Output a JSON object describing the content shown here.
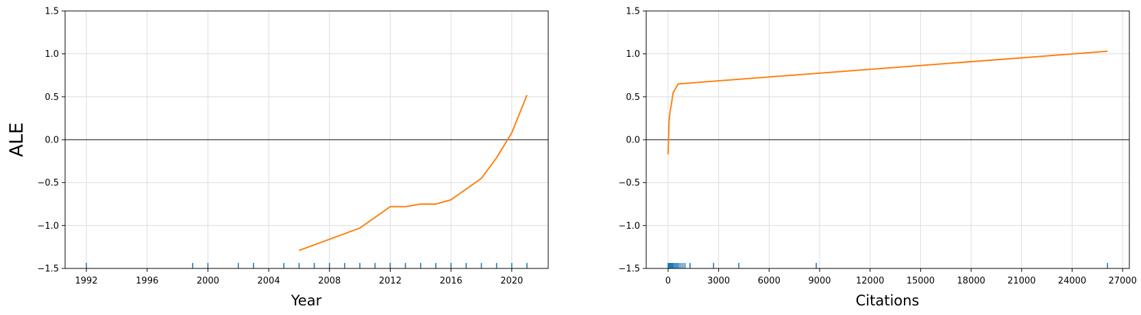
{
  "chart_data": [
    {
      "type": "line",
      "xlabel": "Year",
      "ylabel": "ALE",
      "xlim": [
        1990.6,
        2022.4
      ],
      "ylim": [
        -1.5,
        1.5
      ],
      "x_ticks": [
        "1992",
        "1996",
        "2000",
        "2004",
        "2008",
        "2012",
        "2016",
        "2020"
      ],
      "y_ticks": [
        "−1.5",
        "−1.0",
        "−0.5",
        "0.0",
        "0.5",
        "1.0",
        "1.5"
      ],
      "grid": true,
      "zero_line": true,
      "series": [
        {
          "color": "#ff7f0e",
          "x": [
            2006,
            2010,
            2012,
            2013,
            2014,
            2015,
            2016,
            2018,
            2019,
            2020,
            2021
          ],
          "y": [
            -1.29,
            -1.03,
            -0.78,
            -0.78,
            -0.75,
            -0.75,
            -0.7,
            -0.45,
            -0.21,
            0.08,
            0.52
          ]
        }
      ],
      "rug": {
        "color": "#1f77b4",
        "x": [
          1992,
          1999,
          2000,
          2002,
          2003,
          2005,
          2006,
          2007,
          2008,
          2009,
          2010,
          2011,
          2012,
          2013,
          2014,
          2015,
          2016,
          2017,
          2018,
          2019,
          2020,
          2021
        ]
      }
    },
    {
      "type": "line",
      "xlabel": "Citations",
      "ylabel": "",
      "xlim": [
        -1300,
        27400
      ],
      "ylim": [
        -1.5,
        1.5
      ],
      "x_ticks": [
        "0",
        "3000",
        "6000",
        "9000",
        "12000",
        "15000",
        "18000",
        "21000",
        "24000",
        "27000"
      ],
      "y_ticks": [
        "−1.5",
        "−1.0",
        "−0.5",
        "0.0",
        "0.5",
        "1.0",
        "1.5"
      ],
      "grid": true,
      "zero_line": true,
      "series": [
        {
          "color": "#ff7f0e",
          "x": [
            0,
            20,
            60,
            120,
            200,
            300,
            600,
            26100
          ],
          "y": [
            -0.17,
            0.0,
            0.22,
            0.33,
            0.42,
            0.55,
            0.65,
            1.03
          ]
        }
      ],
      "rug": {
        "color": "#1f77b4",
        "x": [
          0,
          30,
          60,
          100,
          150,
          200,
          260,
          320,
          400,
          480,
          560,
          650,
          760,
          880,
          1000,
          1300,
          2700,
          4200,
          8800,
          26100
        ]
      }
    }
  ]
}
